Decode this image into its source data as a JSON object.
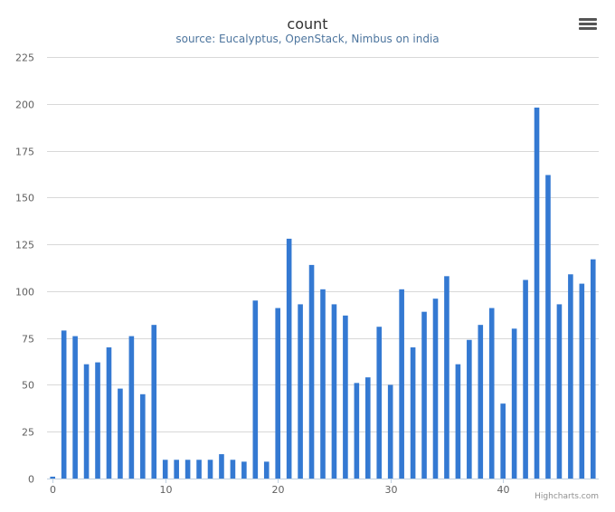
{
  "chart_data": {
    "type": "bar",
    "title": "count",
    "subtitle": "source: Eucalyptus, OpenStack, Nimbus on india",
    "xlabel": "",
    "ylabel": "",
    "x_ticks": [
      0,
      10,
      20,
      30,
      40
    ],
    "y_ticks": [
      0,
      25,
      50,
      75,
      100,
      125,
      150,
      175,
      200,
      225
    ],
    "ylim": [
      0,
      225
    ],
    "xlim": [
      -0.5,
      48.5
    ],
    "grid": true,
    "legend": "none",
    "color": "#3479d2",
    "categories": [
      0,
      1,
      2,
      3,
      4,
      5,
      6,
      7,
      8,
      9,
      10,
      11,
      12,
      13,
      14,
      15,
      16,
      17,
      18,
      19,
      20,
      21,
      22,
      23,
      24,
      25,
      26,
      27,
      28,
      29,
      30,
      31,
      32,
      33,
      34,
      35,
      36,
      37,
      38,
      39,
      40,
      41,
      42,
      43,
      44,
      45,
      46,
      47,
      48
    ],
    "values": [
      1,
      79,
      76,
      61,
      62,
      70,
      48,
      76,
      45,
      82,
      10,
      10,
      10,
      10,
      10,
      13,
      10,
      9,
      95,
      9,
      91,
      128,
      93,
      114,
      101,
      93,
      87,
      51,
      54,
      81,
      50,
      101,
      70,
      89,
      96,
      108,
      61,
      74,
      82,
      91,
      40,
      80,
      106,
      198,
      162,
      93,
      109,
      104,
      117
    ]
  },
  "credits": "Highcharts.com",
  "menu_icon": "hamburger-menu-icon"
}
